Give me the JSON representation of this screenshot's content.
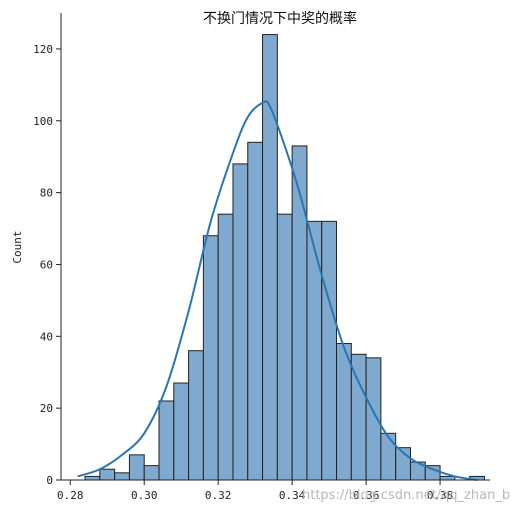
{
  "chart_data": {
    "type": "bar",
    "subtype": "histogram-with-kde",
    "title": "不换门情况下中奖的概率",
    "xlabel": "",
    "ylabel": "Count",
    "xlim": [
      0.2775,
      0.3935
    ],
    "ylim": [
      0,
      130
    ],
    "x_ticks": [
      0.28,
      0.3,
      0.32,
      0.34,
      0.36,
      0.38
    ],
    "x_tick_labels": [
      "0.28",
      "0.30",
      "0.32",
      "0.34",
      "0.36",
      "0.38"
    ],
    "y_ticks": [
      0,
      20,
      40,
      60,
      80,
      100,
      120
    ],
    "bin_edges": [
      0.284,
      0.288,
      0.292,
      0.296,
      0.3,
      0.304,
      0.308,
      0.312,
      0.316,
      0.32,
      0.324,
      0.328,
      0.332,
      0.336,
      0.34,
      0.344,
      0.348,
      0.352,
      0.356,
      0.36,
      0.364,
      0.368,
      0.372,
      0.376,
      0.38,
      0.384,
      0.388,
      0.392
    ],
    "counts": [
      1,
      3,
      2,
      7,
      4,
      22,
      27,
      36,
      68,
      74,
      88,
      94,
      124,
      74,
      93,
      72,
      72,
      38,
      35,
      34,
      13,
      9,
      5,
      4,
      1,
      0,
      1
    ],
    "kde": {
      "x": [
        0.282,
        0.288,
        0.294,
        0.3,
        0.306,
        0.312,
        0.318,
        0.324,
        0.328,
        0.332,
        0.334,
        0.338,
        0.342,
        0.348,
        0.354,
        0.36,
        0.366,
        0.372,
        0.378,
        0.384,
        0.39
      ],
      "y": [
        1,
        3,
        7,
        13,
        26,
        47,
        72,
        91,
        101,
        105,
        104,
        93,
        80,
        57,
        37,
        23,
        12,
        6,
        3,
        1,
        0
      ]
    },
    "bar_color": "#7fa9cf",
    "bar_edge_color": "#222222",
    "kde_color": "#2a76b2",
    "grid": false
  },
  "watermark": "https://blog.csdn.net/qq_zhan_bang"
}
